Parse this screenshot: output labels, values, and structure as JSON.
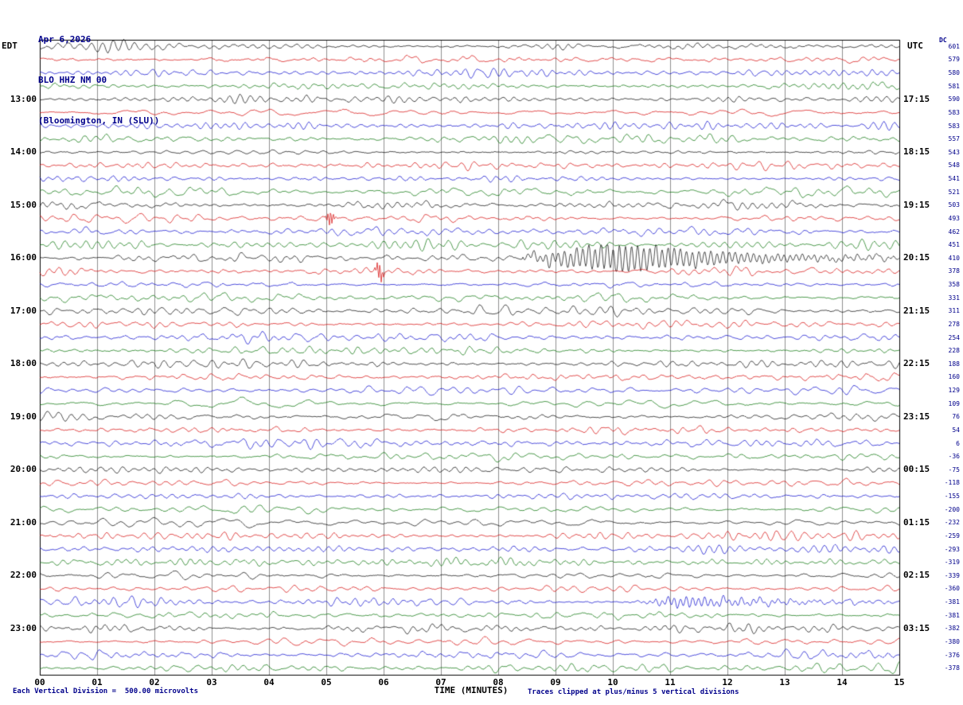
{
  "title": {
    "date": "Apr 6,2026",
    "station": "BLO HHZ NM 00",
    "location": "(Bloomington, IN (SLU))"
  },
  "axes": {
    "left_timezone": "EDT",
    "right_timezone": "UTC",
    "dc_header": "DC",
    "x_label": "TIME (MINUTES)",
    "x_ticks": [
      "00",
      "01",
      "02",
      "03",
      "04",
      "05",
      "06",
      "07",
      "08",
      "09",
      "10",
      "11",
      "12",
      "13",
      "14",
      "15"
    ]
  },
  "footer": {
    "left": "Each Vertical Division =  500.00 microvolts",
    "right": "Traces clipped at plus/minus 5 vertical divisions"
  },
  "colors": {
    "black": "#000000",
    "red": "#d40000",
    "blue": "#0000cc",
    "green": "#007000",
    "grid": "#8f8f8f",
    "frame": "#000000",
    "title_text": "#00008B"
  },
  "chart_data": {
    "type": "line",
    "subtype": "helicorder-seismogram",
    "station_line": "BLO HHZ NM 00 (Bloomington, IN (SLU)) Apr 6,2026",
    "xlabel": "TIME (MINUTES)",
    "x_range_minutes": [
      0,
      15
    ],
    "minutes_per_row": 15,
    "divisions_clip": 5,
    "microvolts_per_division": 500.0,
    "trace_color_cycle": [
      "black",
      "red",
      "blue",
      "green"
    ],
    "rows": [
      {
        "color": "black",
        "dc": 601
      },
      {
        "color": "red",
        "dc": 579
      },
      {
        "color": "blue",
        "dc": 580
      },
      {
        "color": "green",
        "dc": 581
      },
      {
        "color": "black",
        "dc": 590,
        "edt_label": "13:00",
        "utc_label": "17:15"
      },
      {
        "color": "red",
        "dc": 583
      },
      {
        "color": "blue",
        "dc": 583
      },
      {
        "color": "green",
        "dc": 557
      },
      {
        "color": "black",
        "dc": 543,
        "edt_label": "14:00",
        "utc_label": "18:15"
      },
      {
        "color": "red",
        "dc": 548
      },
      {
        "color": "blue",
        "dc": 541
      },
      {
        "color": "green",
        "dc": 521
      },
      {
        "color": "black",
        "dc": 503,
        "edt_label": "15:00",
        "utc_label": "19:15"
      },
      {
        "color": "red",
        "dc": 493
      },
      {
        "color": "blue",
        "dc": 462
      },
      {
        "color": "green",
        "dc": 451
      },
      {
        "color": "black",
        "dc": 410,
        "edt_label": "16:00",
        "utc_label": "20:15"
      },
      {
        "color": "red",
        "dc": 378
      },
      {
        "color": "blue",
        "dc": 358
      },
      {
        "color": "green",
        "dc": 331
      },
      {
        "color": "black",
        "dc": 311,
        "edt_label": "17:00",
        "utc_label": "21:15"
      },
      {
        "color": "red",
        "dc": 278
      },
      {
        "color": "blue",
        "dc": 254
      },
      {
        "color": "green",
        "dc": 228
      },
      {
        "color": "black",
        "dc": 188,
        "edt_label": "18:00",
        "utc_label": "22:15"
      },
      {
        "color": "red",
        "dc": 160
      },
      {
        "color": "blue",
        "dc": 129
      },
      {
        "color": "green",
        "dc": 109
      },
      {
        "color": "black",
        "dc": 76,
        "edt_label": "19:00",
        "utc_label": "23:15"
      },
      {
        "color": "red",
        "dc": 54
      },
      {
        "color": "blue",
        "dc": 6
      },
      {
        "color": "green",
        "dc": -36
      },
      {
        "color": "black",
        "dc": -75,
        "edt_label": "20:00",
        "utc_label": "00:15"
      },
      {
        "color": "red",
        "dc": -118
      },
      {
        "color": "blue",
        "dc": -155
      },
      {
        "color": "green",
        "dc": -200
      },
      {
        "color": "black",
        "dc": -232,
        "edt_label": "21:00",
        "utc_label": "01:15"
      },
      {
        "color": "red",
        "dc": -259
      },
      {
        "color": "blue",
        "dc": -293
      },
      {
        "color": "green",
        "dc": -319
      },
      {
        "color": "black",
        "dc": -339,
        "edt_label": "22:00",
        "utc_label": "02:15"
      },
      {
        "color": "red",
        "dc": -360
      },
      {
        "color": "blue",
        "dc": -381
      },
      {
        "color": "green",
        "dc": -381
      },
      {
        "color": "black",
        "dc": -382,
        "edt_label": "23:00",
        "utc_label": "03:15"
      },
      {
        "color": "red",
        "dc": -380
      },
      {
        "color": "blue",
        "dc": -376
      },
      {
        "color": "green",
        "dc": -378
      }
    ],
    "events": [
      {
        "row_index": 16,
        "type": "burst",
        "start_min": 8.7,
        "peak_min": 10.25,
        "end_min": 12.5,
        "amplitude_divisions": 5.0,
        "description": "Large earthquake signal on 16:00 EDT / 20:15 UTC trace, clipped"
      },
      {
        "row_index": 17,
        "type": "spike",
        "minute": 5.93,
        "amplitude_divisions": 3.4,
        "description": "Sharp spike on 16:15 EDT red trace"
      },
      {
        "row_index": 13,
        "type": "spike",
        "minute": 5.07,
        "amplitude_divisions": 2.8,
        "description": "Sharp spike on 15:15 EDT red trace"
      },
      {
        "row_index": 42,
        "type": "burst",
        "start_min": 10.6,
        "peak_min": 11.3,
        "end_min": 13.0,
        "amplitude_divisions": 1.8,
        "description": "Elevated noise burst on 22:30 EDT blue trace"
      }
    ]
  }
}
